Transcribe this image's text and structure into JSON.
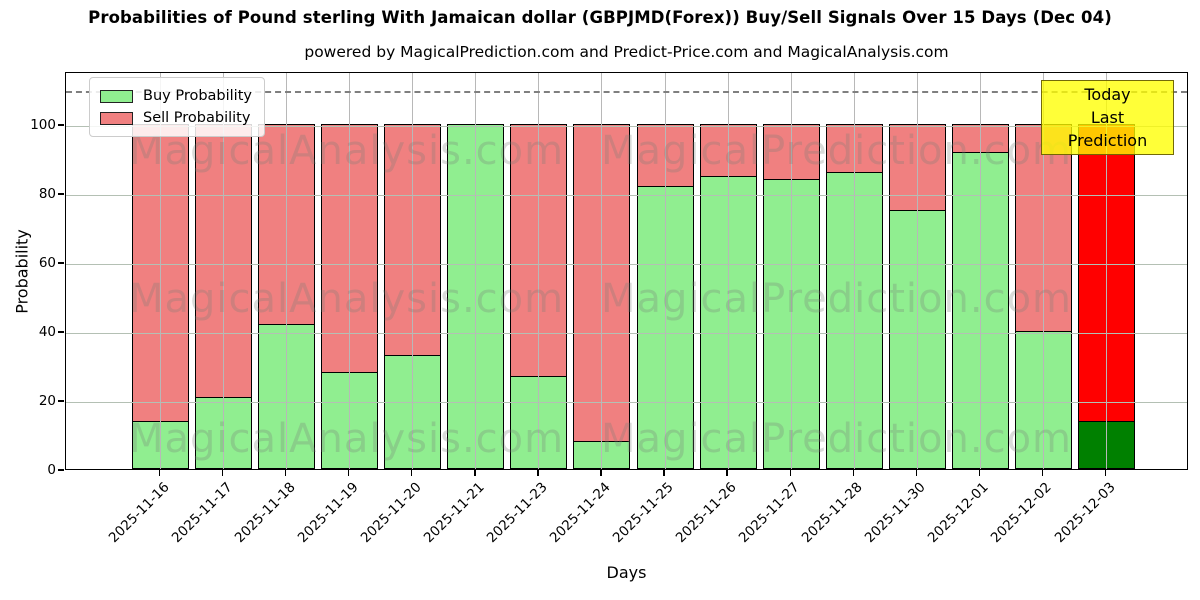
{
  "header": {
    "title": "Probabilities of Pound sterling With Jamaican dollar (GBPJMD(Forex)) Buy/Sell Signals Over 15 Days (Dec 04)",
    "subtitle": "powered by MagicalPrediction.com and Predict-Price.com and MagicalAnalysis.com"
  },
  "legend": {
    "buy_label": "Buy Probability",
    "sell_label": "Sell Probability"
  },
  "annotation": {
    "line1": "Today",
    "line2": "Last Prediction"
  },
  "watermarks": {
    "left_text": "MagicalAnalysis.com",
    "right_text": "MagicalPrediction.com"
  },
  "axes": {
    "xlabel": "Days",
    "ylabel": "Probability",
    "yticks": [
      0,
      20,
      40,
      60,
      80,
      100
    ]
  },
  "colors": {
    "buy": "#90ee90",
    "sell": "#f08080",
    "last_bar_buy": "#008000",
    "last_bar_sell": "#ff0000",
    "bar_edge": "#000000",
    "dashed_line": "#7f7f7f",
    "today_box_bg": "#ffff00"
  },
  "chart_data": {
    "type": "bar",
    "stacked": true,
    "title": "Probabilities of Pound sterling With Jamaican dollar (GBPJMD(Forex)) Buy/Sell Signals Over 15 Days (Dec 04)",
    "xlabel": "Days",
    "ylabel": "Probability",
    "ylim": [
      0,
      115.4
    ],
    "dashed_reference_line_y": 110,
    "grid": true,
    "legend_position": "upper left",
    "categories": [
      "2025-11-16",
      "2025-11-17",
      "2025-11-18",
      "2025-11-19",
      "2025-11-20",
      "2025-11-21",
      "2025-11-23",
      "2025-11-24",
      "2025-11-25",
      "2025-11-26",
      "2025-11-27",
      "2025-11-28",
      "2025-11-30",
      "2025-12-01",
      "2025-12-02",
      "2025-12-03"
    ],
    "series": [
      {
        "name": "Buy Probability",
        "color": "#90ee90",
        "values": [
          14,
          21,
          42,
          28,
          33,
          100,
          27,
          8,
          82,
          85,
          84,
          86,
          75,
          92,
          40,
          14
        ]
      },
      {
        "name": "Sell Probability",
        "color": "#f08080",
        "values": [
          86,
          79,
          58,
          72,
          67,
          0,
          73,
          92,
          18,
          15,
          16,
          14,
          25,
          8,
          60,
          86
        ]
      }
    ],
    "last_bar_highlight": {
      "buy_color": "#008000",
      "sell_color": "#ff0000"
    }
  }
}
